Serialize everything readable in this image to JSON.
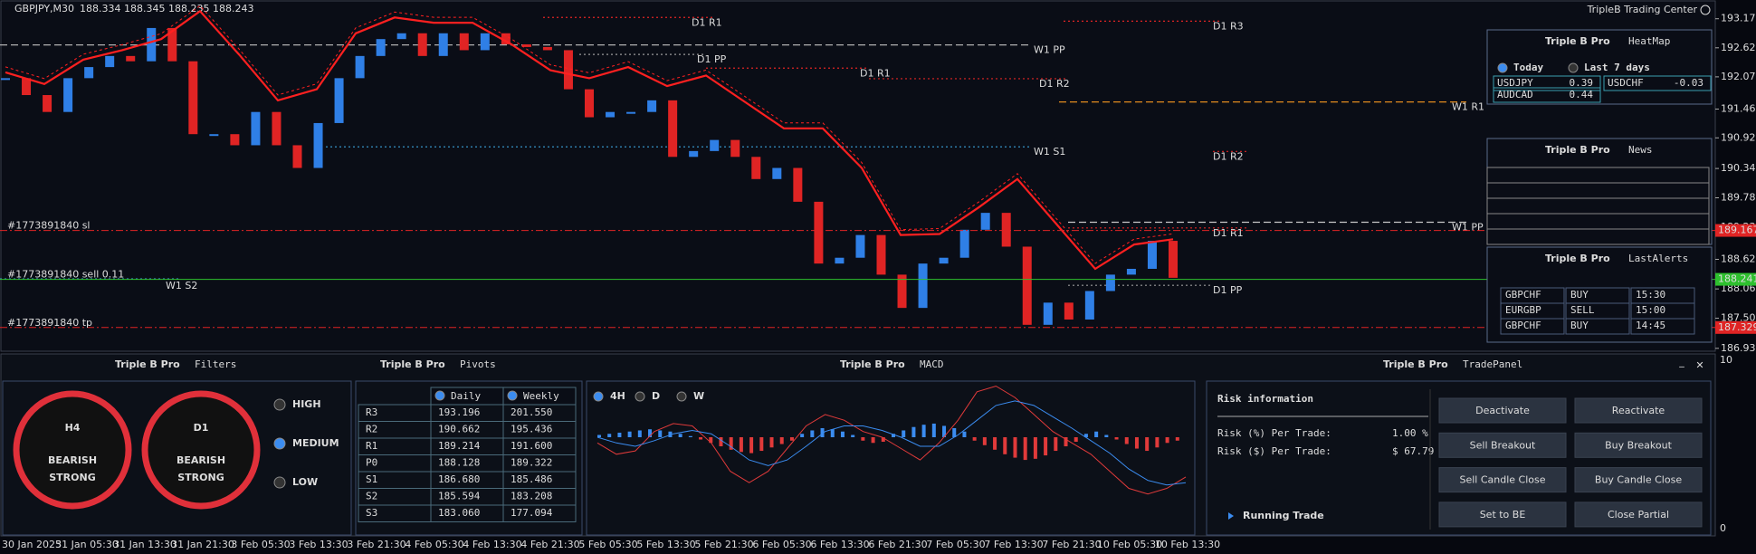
{
  "header": {
    "symbol": "GBPJPY,M30",
    "ohlc": "188.334 188.345 188.235 188.243",
    "brand": "TripleB Trading Center"
  },
  "price_chart": {
    "ylim": [
      186.88,
      193.53
    ],
    "yticks": [
      193.175,
      192.625,
      192.075,
      191.465,
      {
        "value": 190.92,
        "label": "190.920"
      },
      {
        "value": 190.34,
        "label": "190.340"
      },
      189.785,
      {
        "value": 189.23,
        "label": "189.230"
      },
      {
        "value": 188.62,
        "label": "188.620"
      },
      {
        "value": 188.06,
        "label": "188.060"
      },
      187.505,
      186.935
    ],
    "time_labels": [
      "30 Jan 2025",
      "31 Jan 05:30",
      "31 Jan 13:30",
      "31 Jan 21:30",
      "3 Feb 05:30",
      "3 Feb 13:30",
      "3 Feb 21:30",
      "4 Feb 05:30",
      "4 Feb 13:30",
      "4 Feb 21:30",
      "5 Feb 05:30",
      "5 Feb 13:30",
      "5 Feb 21:30",
      "6 Feb 05:30",
      "6 Feb 13:30",
      "6 Feb 21:30",
      "7 Feb 05:30",
      "7 Feb 13:30",
      "7 Feb 21:30",
      "10 Feb 05:30",
      "10 Feb 13:30"
    ],
    "closes": [
      192.05,
      191.73,
      191.41,
      192.05,
      192.26,
      192.47,
      192.37,
      193.0,
      192.37,
      190.99,
      190.99,
      190.78,
      191.41,
      190.78,
      190.35,
      191.2,
      192.05,
      192.47,
      192.79,
      192.9,
      192.47,
      192.9,
      192.58,
      192.9,
      192.69,
      192.64,
      192.58,
      191.84,
      191.31,
      191.41,
      191.41,
      191.63,
      190.56,
      190.67,
      190.88,
      190.56,
      190.14,
      190.35,
      189.71,
      188.54,
      188.65,
      189.08,
      188.33,
      187.7,
      188.54,
      188.65,
      189.18,
      189.5,
      188.86,
      187.38,
      187.8,
      187.48,
      188.02,
      188.33,
      188.44,
      188.97,
      188.27
    ],
    "envelope": [
      192.16,
      191.94,
      192.4,
      192.58,
      192.79,
      193.32,
      192.5,
      191.63,
      191.84,
      192.9,
      193.2,
      193.1,
      193.1,
      192.69,
      192.2,
      192.05,
      192.26,
      191.9,
      192.1,
      191.6,
      191.1,
      191.1,
      190.35,
      189.08,
      189.1,
      189.6,
      190.14,
      189.29,
      188.44,
      188.9,
      189.0
    ],
    "levels": [
      {
        "label": "W1 PP",
        "price": 192.68,
        "color": "#b0b0b0"
      },
      {
        "label": "D1 R1",
        "price": 193.2,
        "color": "#e02424"
      },
      {
        "label": "D1 R3",
        "price": 193.13,
        "color": "#e02424"
      },
      {
        "label": "D1 PP",
        "price": 192.5,
        "color": "#9a9a9a"
      },
      {
        "label": "D1 R1",
        "price": 192.24,
        "color": "#e02424"
      },
      {
        "label": "D1 R2",
        "price": 192.04,
        "color": "#e02424"
      },
      {
        "label": "W1 R1",
        "price": 191.6,
        "color": "#e08a1e"
      },
      {
        "label": "W1 S1",
        "price": 190.75,
        "color": "#3aa0d8"
      },
      {
        "label": "D1 R2",
        "price": 190.662,
        "color": "#e02424"
      },
      {
        "label": "W1 PP",
        "price": 189.322,
        "color": "#c8c8c8"
      },
      {
        "label": "D1 R1",
        "price": 189.214,
        "color": "#e02424"
      },
      {
        "label": "D1 PP",
        "price": 188.128,
        "color": "#9a9a9a"
      },
      {
        "label": "W1 S2",
        "price": 188.25,
        "color": "#3aa0d8"
      }
    ],
    "trades": [
      {
        "label": "#1773891840 sl",
        "price": 189.167,
        "color": "#e02424"
      },
      {
        "label": "#1773891840 sell 0.11",
        "price": 188.241,
        "color": "#2ec02e"
      },
      {
        "label": "#1773891840 tp",
        "price": 187.329,
        "color": "#e02424"
      }
    ]
  },
  "heatmap": {
    "brand": "Triple B Pro",
    "title": "HeatMap",
    "options": [
      "Today",
      "Last 7 days"
    ],
    "cells": [
      [
        "USDJPY",
        "0.39"
      ],
      [
        "USDCHF",
        "-0.03"
      ],
      [
        "AUDCAD",
        "0.44"
      ]
    ]
  },
  "news": {
    "brand": "Triple B Pro",
    "title": "News"
  },
  "alerts": {
    "brand": "Triple B Pro",
    "title": "LastAlerts",
    "rows": [
      [
        "GBPCHF",
        "BUY",
        "15:30"
      ],
      [
        "EURGBP",
        "SELL",
        "15:00"
      ],
      [
        "GBPCHF",
        "BUY",
        "14:45"
      ]
    ]
  },
  "filters": {
    "brand": "Triple B Pro",
    "title": "Filters",
    "gauges": [
      {
        "tf": "H4",
        "line1": "BEARISH",
        "line2": "STRONG"
      },
      {
        "tf": "D1",
        "line1": "BEARISH",
        "line2": "STRONG"
      }
    ],
    "levels": [
      "HIGH",
      "MEDIUM",
      "LOW"
    ]
  },
  "pivots": {
    "brand": "Triple B Pro",
    "title": "Pivots",
    "headers": [
      "Daily",
      "Weekly"
    ],
    "rows": [
      [
        "R3",
        "193.196",
        "201.550"
      ],
      [
        "R2",
        "190.662",
        "195.436"
      ],
      [
        "R1",
        "189.214",
        "191.600"
      ],
      [
        "P0",
        "188.128",
        "189.322"
      ],
      [
        "S1",
        "186.680",
        "185.486"
      ],
      [
        "S2",
        "185.594",
        "183.208"
      ],
      [
        "S3",
        "183.060",
        "177.094"
      ]
    ]
  },
  "macd": {
    "brand": "Triple B Pro",
    "title": "MACD",
    "timeframes": [
      "4H",
      "D",
      "W"
    ],
    "ylim": [
      -55,
      55
    ],
    "histogram": [
      2,
      3,
      4,
      5,
      6,
      7,
      6,
      5,
      3,
      1,
      -2,
      -5,
      -8,
      -11,
      -13,
      -14,
      -12,
      -9,
      -6,
      -3,
      3,
      6,
      8,
      7,
      5,
      2,
      -3,
      -5,
      -4,
      3,
      6,
      9,
      11,
      12,
      10,
      8,
      5,
      -3,
      -7,
      -11,
      -15,
      -18,
      -20,
      -19,
      -16,
      -12,
      -8,
      -4,
      3,
      5,
      2,
      -2,
      -6,
      -10,
      -12,
      -9,
      -5,
      -3
    ],
    "macd_line": [
      -5,
      -15,
      -12,
      5,
      12,
      10,
      -5,
      -30,
      -40,
      -30,
      -10,
      10,
      20,
      15,
      5,
      0,
      -10,
      -20,
      -5,
      15,
      40,
      45,
      35,
      20,
      5,
      -5,
      -15,
      -30,
      -45,
      -50,
      -45,
      -35
    ],
    "signal_line": [
      0,
      -5,
      -8,
      -3,
      3,
      6,
      3,
      -8,
      -20,
      -25,
      -20,
      -8,
      5,
      10,
      10,
      6,
      0,
      -8,
      -8,
      2,
      15,
      28,
      32,
      28,
      18,
      8,
      -3,
      -14,
      -28,
      -38,
      -42,
      -40
    ]
  },
  "trade_panel": {
    "brand": "Triple B Pro",
    "title": "TradePanel",
    "risk_title": "Risk information",
    "risk_pct_label": "Risk (%) Per Trade:",
    "risk_pct": "1.00 %",
    "risk_usd_label": "Risk ($) Per Trade:",
    "risk_usd": "$ 67.79",
    "running": "Running Trade",
    "buttons": [
      "Deactivate",
      "Reactivate",
      "Sell Breakout",
      "Buy Breakout",
      "Sell Candle Close",
      "Buy Candle Close",
      "Set to BE",
      "Close Partial"
    ],
    "controls": [
      "_",
      "✕"
    ]
  },
  "lower_axis": [
    "10",
    "0"
  ]
}
